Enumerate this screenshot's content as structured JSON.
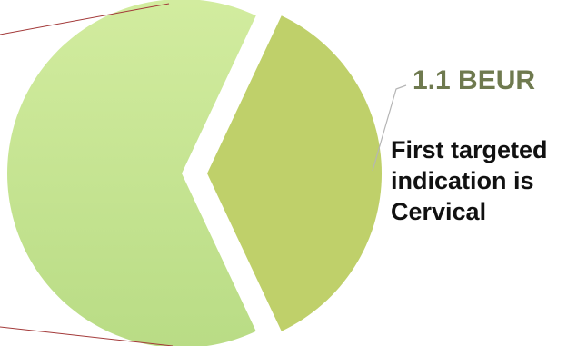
{
  "chart_data": {
    "type": "pie",
    "slices": [
      {
        "label": "",
        "fraction": 0.64,
        "color": "#c9e796"
      },
      {
        "label": "1.1 BEUR",
        "fraction": 0.36,
        "color": "#bfd06a",
        "exploded": true,
        "annotation": "First targeted indication is Cervical"
      }
    ],
    "legend": "none"
  },
  "labels": {
    "value": "1.1 BEUR",
    "description": "First targeted indication is Cervical"
  },
  "colors": {
    "slice_main": "#c9e796",
    "slice_main_dark": "#b9dc85",
    "slice_exploded": "#bfd06a",
    "leader_line": "#b5b5b5",
    "zoom_line": "#a33a3a",
    "value_text": "#6f7a4f"
  }
}
